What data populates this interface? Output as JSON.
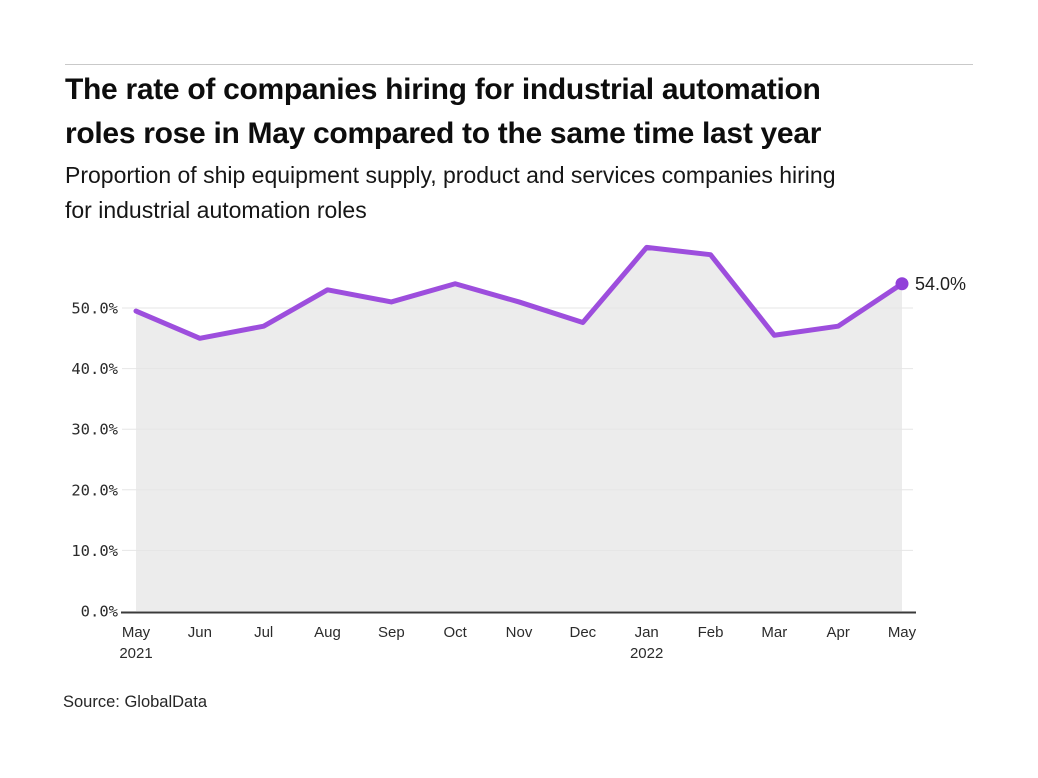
{
  "header": {
    "title_lines": [
      "The rate of companies hiring for industrial automation",
      "roles rose in May compared to the same time last year"
    ],
    "subtitle_lines": [
      "Proportion of ship equipment supply, product and services companies hiring",
      "for industrial automation roles"
    ]
  },
  "footer": {
    "source": "Source: GlobalData"
  },
  "colors": {
    "line": "#9d4edd",
    "dot": "#9140d9",
    "area": "#ececec",
    "grid": "#e6e6e6",
    "axis": "#3a3a3a",
    "rule": "#c9c9c9",
    "tick_text": "#2b2b2b"
  },
  "chart_data": {
    "type": "area",
    "title": "The rate of companies hiring for industrial automation roles rose in May compared to the same time last year",
    "subtitle": "Proportion of ship equipment supply, product and services companies hiring for industrial automation roles",
    "categories": [
      "May 2021",
      "Jun",
      "Jul",
      "Aug",
      "Sep",
      "Oct",
      "Nov",
      "Dec",
      "Jan 2022",
      "Feb",
      "Mar",
      "Apr",
      "May"
    ],
    "x_tick_labels": [
      [
        "May",
        "2021"
      ],
      [
        "Jun"
      ],
      [
        "Jul"
      ],
      [
        "Aug"
      ],
      [
        "Sep"
      ],
      [
        "Oct"
      ],
      [
        "Nov"
      ],
      [
        "Dec"
      ],
      [
        "Jan",
        "2022"
      ],
      [
        "Feb"
      ],
      [
        "Mar"
      ],
      [
        "Apr"
      ],
      [
        "May"
      ]
    ],
    "series": [
      {
        "name": "Proportion of companies hiring for industrial automation roles",
        "values": [
          49.5,
          45.0,
          47.0,
          53.0,
          51.0,
          54.0,
          51.0,
          47.6,
          60.0,
          58.8,
          45.5,
          47.0,
          54.0
        ]
      }
    ],
    "end_label": "54.0%",
    "y_ticks": [
      0,
      10,
      20,
      30,
      40,
      50
    ],
    "y_tick_labels": [
      "0.0%",
      "10.0%",
      "20.0%",
      "30.0%",
      "40.0%",
      "50.0%"
    ],
    "ylim": [
      0,
      63
    ],
    "xlabel": "",
    "ylabel": "",
    "grid": "horizontal",
    "legend": "none"
  }
}
